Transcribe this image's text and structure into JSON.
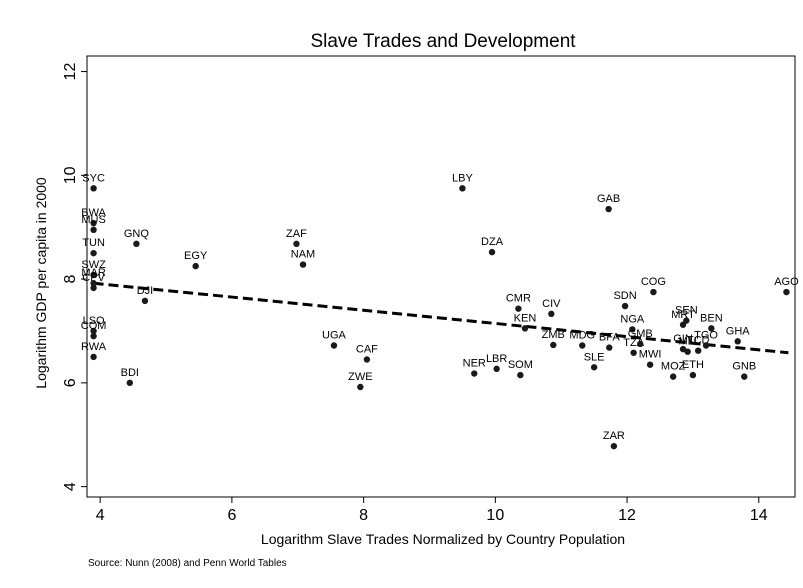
{
  "chart_data": {
    "type": "scatter",
    "title": "Slave Trades and Development",
    "xlabel": "Logarithm Slave Trades Normalized by Country Population",
    "ylabel": "Logarithm GDP per capita in 2000",
    "source": "Source: Nunn (2008) and Penn World Tables",
    "xlim": [
      3.8,
      14.55
    ],
    "ylim": [
      3.8,
      12.3
    ],
    "xticks": [
      4,
      6,
      8,
      10,
      12,
      14
    ],
    "yticks": [
      4,
      6,
      8,
      10,
      12
    ],
    "grid": false,
    "fit_line": {
      "x": [
        3.9,
        14.45
      ],
      "y": [
        7.92,
        6.58
      ],
      "style": "dashed"
    },
    "points": [
      {
        "label": "SYC",
        "x": 3.9,
        "y": 9.75
      },
      {
        "label": "BWA",
        "x": 3.9,
        "y": 9.08
      },
      {
        "label": "MUS",
        "x": 3.9,
        "y": 8.95
      },
      {
        "label": "TUN",
        "x": 3.9,
        "y": 8.5
      },
      {
        "label": "SWZ",
        "x": 3.9,
        "y": 8.08
      },
      {
        "label": "MAR",
        "x": 3.9,
        "y": 7.92
      },
      {
        "label": "CPV",
        "x": 3.9,
        "y": 7.83
      },
      {
        "label": "LSO",
        "x": 3.9,
        "y": 7.0
      },
      {
        "label": "COM",
        "x": 3.9,
        "y": 6.9
      },
      {
        "label": "RWA",
        "x": 3.9,
        "y": 6.5
      },
      {
        "label": "BDI",
        "x": 4.45,
        "y": 6.0
      },
      {
        "label": "GNQ",
        "x": 4.55,
        "y": 8.68
      },
      {
        "label": "DJI",
        "x": 4.68,
        "y": 7.58
      },
      {
        "label": "EGY",
        "x": 5.45,
        "y": 8.25
      },
      {
        "label": "ZAF",
        "x": 6.98,
        "y": 8.68
      },
      {
        "label": "NAM",
        "x": 7.08,
        "y": 8.28
      },
      {
        "label": "UGA",
        "x": 7.55,
        "y": 6.72
      },
      {
        "label": "ZWE",
        "x": 7.95,
        "y": 5.92
      },
      {
        "label": "CAF",
        "x": 8.05,
        "y": 6.45
      },
      {
        "label": "LBY",
        "x": 9.5,
        "y": 9.75
      },
      {
        "label": "DZA",
        "x": 9.95,
        "y": 8.52
      },
      {
        "label": "NER",
        "x": 9.68,
        "y": 6.18
      },
      {
        "label": "LBR",
        "x": 10.02,
        "y": 6.27
      },
      {
        "label": "CMR",
        "x": 10.35,
        "y": 7.43
      },
      {
        "label": "KEN",
        "x": 10.45,
        "y": 7.05
      },
      {
        "label": "SOM",
        "x": 10.38,
        "y": 6.15
      },
      {
        "label": "CIV",
        "x": 10.85,
        "y": 7.33
      },
      {
        "label": "ZMB",
        "x": 10.88,
        "y": 6.73
      },
      {
        "label": "MDG",
        "x": 11.32,
        "y": 6.72
      },
      {
        "label": "SLE",
        "x": 11.5,
        "y": 6.3
      },
      {
        "label": "GAB",
        "x": 11.72,
        "y": 9.35
      },
      {
        "label": "BFA",
        "x": 11.73,
        "y": 6.68
      },
      {
        "label": "SDN",
        "x": 11.97,
        "y": 7.48
      },
      {
        "label": "NGA",
        "x": 12.08,
        "y": 7.03
      },
      {
        "label": "TZA",
        "x": 12.1,
        "y": 6.58
      },
      {
        "label": "GMB",
        "x": 12.2,
        "y": 6.75
      },
      {
        "label": "MWI",
        "x": 12.35,
        "y": 6.35
      },
      {
        "label": "COG",
        "x": 12.4,
        "y": 7.75
      },
      {
        "label": "MOZ",
        "x": 12.7,
        "y": 6.12
      },
      {
        "label": "SEN",
        "x": 12.9,
        "y": 7.2
      },
      {
        "label": "MRT",
        "x": 12.85,
        "y": 7.12
      },
      {
        "label": "GIN",
        "x": 12.85,
        "y": 6.65
      },
      {
        "label": "MLI",
        "x": 12.92,
        "y": 6.6
      },
      {
        "label": "ETH",
        "x": 13.0,
        "y": 6.15
      },
      {
        "label": "TCD",
        "x": 13.08,
        "y": 6.62
      },
      {
        "label": "BEN",
        "x": 13.28,
        "y": 7.05
      },
      {
        "label": "TGO",
        "x": 13.2,
        "y": 6.72
      },
      {
        "label": "GHA",
        "x": 13.68,
        "y": 6.8
      },
      {
        "label": "GNB",
        "x": 13.78,
        "y": 6.12
      },
      {
        "label": "ZAR",
        "x": 11.8,
        "y": 4.78
      },
      {
        "label": "AGO",
        "x": 14.42,
        "y": 7.75
      }
    ]
  }
}
